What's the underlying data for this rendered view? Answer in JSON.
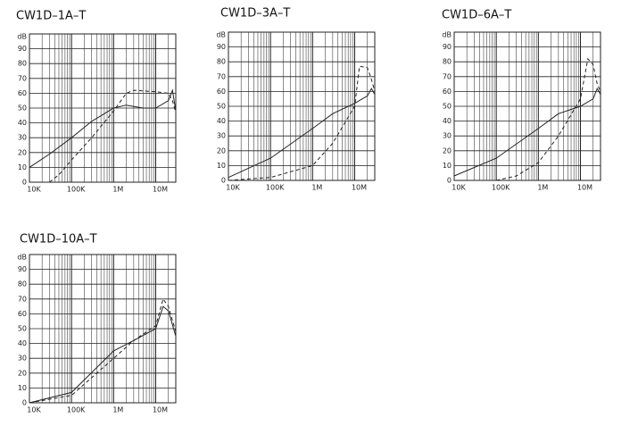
{
  "chart_data": [
    {
      "type": "line",
      "title": "CW1D–1A–T",
      "y_label": "dB",
      "x_scale": "log",
      "minor_grid": true,
      "xlim": [
        10000,
        30000000
      ],
      "xticks": [
        {
          "value": 10000,
          "label": "10K"
        },
        {
          "value": 100000,
          "label": "100K"
        },
        {
          "value": 1000000,
          "label": "1M"
        },
        {
          "value": 10000000,
          "label": "10M"
        }
      ],
      "ylim": [
        0,
        100
      ],
      "yticks": [
        0,
        10,
        20,
        30,
        40,
        50,
        60,
        70,
        80,
        90
      ],
      "series": [
        {
          "color": "#222",
          "dashed": false,
          "x": [
            10000,
            30000,
            100000,
            300000,
            1000000,
            2000000,
            5000000,
            10000000,
            20000000,
            25000000,
            30000000
          ],
          "values": [
            10,
            19,
            30,
            41,
            50,
            52,
            50,
            50,
            55,
            62,
            48
          ]
        },
        {
          "color": "#222",
          "dashed": true,
          "x": [
            30000,
            50000,
            100000,
            300000,
            1000000,
            2000000,
            3000000,
            10000000,
            20000000,
            25000000,
            30000000
          ],
          "values": [
            0,
            5,
            15,
            30,
            48,
            60,
            62,
            61,
            60,
            55,
            47
          ]
        }
      ]
    },
    {
      "type": "line",
      "title": "CW1D–3A–T",
      "y_label": "dB",
      "x_scale": "log",
      "minor_grid": true,
      "xlim": [
        10000,
        30000000
      ],
      "xticks": [
        {
          "value": 10000,
          "label": "10K"
        },
        {
          "value": 100000,
          "label": "100K"
        },
        {
          "value": 1000000,
          "label": "1M"
        },
        {
          "value": 10000000,
          "label": "10M"
        }
      ],
      "ylim": [
        0,
        100
      ],
      "yticks": [
        0,
        10,
        20,
        30,
        40,
        50,
        60,
        70,
        80,
        90
      ],
      "series": [
        {
          "color": "#222",
          "dashed": false,
          "x": [
            10000,
            100000,
            1000000,
            3000000,
            10000000,
            20000000,
            25000000,
            30000000
          ],
          "values": [
            2,
            15,
            35,
            45,
            52,
            57,
            62,
            58
          ]
        },
        {
          "color": "#222",
          "dashed": true,
          "x": [
            10000,
            100000,
            1000000,
            3000000,
            10000000,
            13000000,
            20000000,
            25000000,
            30000000
          ],
          "values": [
            0,
            2,
            10,
            25,
            50,
            77,
            76,
            68,
            60
          ]
        }
      ]
    },
    {
      "type": "line",
      "title": "CW1D–6A–T",
      "y_label": "dB",
      "x_scale": "log",
      "minor_grid": true,
      "xlim": [
        10000,
        30000000
      ],
      "xticks": [
        {
          "value": 10000,
          "label": "10K"
        },
        {
          "value": 100000,
          "label": "100K"
        },
        {
          "value": 1000000,
          "label": "1M"
        },
        {
          "value": 10000000,
          "label": "10M"
        }
      ],
      "ylim": [
        0,
        100
      ],
      "yticks": [
        0,
        10,
        20,
        30,
        40,
        50,
        60,
        70,
        80,
        90
      ],
      "series": [
        {
          "color": "#222",
          "dashed": false,
          "x": [
            10000,
            100000,
            1000000,
            3000000,
            10000000,
            20000000,
            25000000,
            30000000
          ],
          "values": [
            3,
            15,
            35,
            45,
            50,
            55,
            62,
            58
          ]
        },
        {
          "color": "#222",
          "dashed": true,
          "x": [
            100000,
            300000,
            1000000,
            3000000,
            10000000,
            15000000,
            20000000,
            25000000,
            30000000
          ],
          "values": [
            0,
            3,
            12,
            30,
            55,
            82,
            78,
            65,
            60
          ]
        }
      ]
    },
    {
      "type": "line",
      "title": "CW1D–10A–T",
      "y_label": "dB",
      "x_scale": "log",
      "minor_grid": true,
      "xlim": [
        10000,
        30000000
      ],
      "xticks": [
        {
          "value": 10000,
          "label": "10K"
        },
        {
          "value": 100000,
          "label": "100K"
        },
        {
          "value": 1000000,
          "label": "1M"
        },
        {
          "value": 10000000,
          "label": "10M"
        }
      ],
      "ylim": [
        0,
        100
      ],
      "yticks": [
        0,
        10,
        20,
        30,
        40,
        50,
        60,
        70,
        80,
        90
      ],
      "series": [
        {
          "color": "#222",
          "dashed": false,
          "x": [
            10000,
            100000,
            1000000,
            3000000,
            10000000,
            15000000,
            20000000,
            30000000
          ],
          "values": [
            0,
            7,
            35,
            42,
            50,
            65,
            62,
            45
          ]
        },
        {
          "color": "#222",
          "dashed": true,
          "x": [
            10000,
            100000,
            1000000,
            3000000,
            10000000,
            15000000,
            20000000,
            30000000
          ],
          "values": [
            0,
            5,
            30,
            42,
            52,
            70,
            65,
            48
          ]
        }
      ]
    }
  ]
}
